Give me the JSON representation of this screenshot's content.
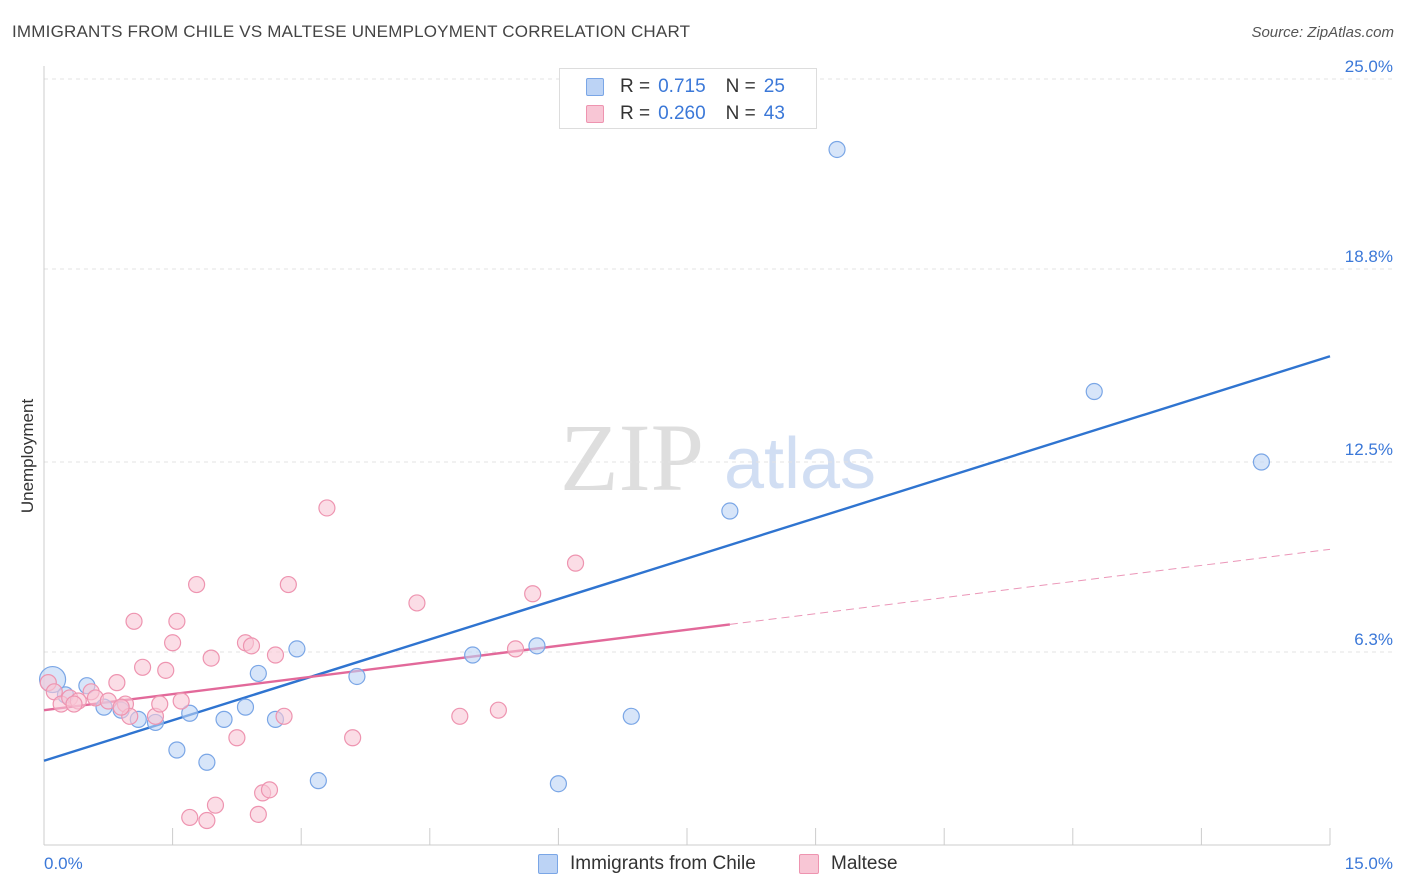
{
  "header": {
    "title": "IMMIGRANTS FROM CHILE VS MALTESE UNEMPLOYMENT CORRELATION CHART",
    "source": "Source: ZipAtlas.com"
  },
  "watermark": {
    "zip": "ZIP",
    "atlas": "atlas"
  },
  "colors": {
    "blue_fill": "#bcd3f5",
    "blue_stroke": "#7aa6e6",
    "blue_line": "#2f74d0",
    "pink_fill": "#f8c6d5",
    "pink_stroke": "#ee94b0",
    "pink_line": "#e2699a",
    "tick_label": "#3b78d8",
    "grid": "#e3e3e3"
  },
  "stats_legend": {
    "rows": [
      {
        "r_label": "R =",
        "r_value": "0.715",
        "n_label": "N =",
        "n_value": "25",
        "swatch": "blue"
      },
      {
        "r_label": "R =",
        "r_value": "0.260",
        "n_label": "N =",
        "n_value": "43",
        "swatch": "pink"
      }
    ]
  },
  "chart_data": {
    "type": "scatter",
    "title": "IMMIGRANTS FROM CHILE VS MALTESE UNEMPLOYMENT CORRELATION CHART",
    "xlabel": "",
    "ylabel": "Unemployment",
    "xlim": [
      0,
      15
    ],
    "ylim": [
      0,
      25
    ],
    "x_tick_labels": [
      "0.0%",
      "15.0%"
    ],
    "y_ticks": [
      6.3,
      12.5,
      18.8,
      25.0
    ],
    "y_tick_labels": [
      "6.3%",
      "12.5%",
      "18.8%",
      "25.0%"
    ],
    "grid": "horizontal dashed",
    "legend_position": "bottom-center",
    "series": [
      {
        "name": "Immigrants from Chile",
        "color": "blue",
        "trend": {
          "x": [
            0,
            15
          ],
          "y": [
            2.75,
            15.95
          ]
        },
        "points": [
          [
            0.1,
            5.4
          ],
          [
            0.25,
            4.9
          ],
          [
            0.5,
            5.2
          ],
          [
            0.7,
            4.5
          ],
          [
            0.9,
            4.4
          ],
          [
            1.1,
            4.1
          ],
          [
            1.3,
            4.0
          ],
          [
            1.55,
            3.1
          ],
          [
            1.7,
            4.3
          ],
          [
            1.9,
            2.7
          ],
          [
            2.1,
            4.1
          ],
          [
            2.35,
            4.5
          ],
          [
            2.5,
            5.6
          ],
          [
            2.7,
            4.1
          ],
          [
            2.95,
            6.4
          ],
          [
            3.2,
            2.1
          ],
          [
            3.65,
            5.5
          ],
          [
            5.0,
            6.2
          ],
          [
            5.75,
            6.5
          ],
          [
            6.0,
            2.0
          ],
          [
            6.85,
            4.2
          ],
          [
            8.0,
            10.9
          ],
          [
            9.25,
            22.7
          ],
          [
            12.25,
            14.8
          ],
          [
            14.2,
            12.5
          ]
        ]
      },
      {
        "name": "Maltese",
        "color": "pink",
        "trend": {
          "x": [
            0,
            8.0
          ],
          "y": [
            4.4,
            7.2
          ]
        },
        "trend_extension": {
          "x": [
            8.0,
            15
          ],
          "y": [
            7.2,
            9.65
          ]
        },
        "points": [
          [
            0.05,
            5.3
          ],
          [
            0.12,
            5.0
          ],
          [
            0.2,
            4.6
          ],
          [
            0.3,
            4.8
          ],
          [
            0.4,
            4.7
          ],
          [
            0.55,
            5.0
          ],
          [
            0.6,
            4.8
          ],
          [
            0.75,
            4.7
          ],
          [
            0.85,
            5.3
          ],
          [
            0.95,
            4.6
          ],
          [
            1.0,
            4.2
          ],
          [
            1.05,
            7.3
          ],
          [
            1.15,
            5.8
          ],
          [
            1.3,
            4.2
          ],
          [
            1.35,
            4.6
          ],
          [
            1.42,
            5.7
          ],
          [
            1.5,
            6.6
          ],
          [
            1.55,
            7.3
          ],
          [
            1.6,
            4.7
          ],
          [
            1.7,
            0.9
          ],
          [
            1.78,
            8.5
          ],
          [
            1.9,
            0.8
          ],
          [
            1.95,
            6.1
          ],
          [
            2.0,
            1.3
          ],
          [
            2.25,
            3.5
          ],
          [
            2.35,
            6.6
          ],
          [
            2.42,
            6.5
          ],
          [
            2.5,
            1.0
          ],
          [
            2.55,
            1.7
          ],
          [
            2.63,
            1.8
          ],
          [
            2.7,
            6.2
          ],
          [
            2.8,
            4.2
          ],
          [
            2.85,
            8.5
          ],
          [
            3.3,
            11.0
          ],
          [
            3.6,
            3.5
          ],
          [
            4.35,
            7.9
          ],
          [
            4.85,
            4.2
          ],
          [
            5.3,
            4.4
          ],
          [
            5.5,
            6.4
          ],
          [
            5.7,
            8.2
          ],
          [
            6.2,
            9.2
          ],
          [
            0.35,
            4.6
          ],
          [
            0.9,
            4.5
          ]
        ]
      }
    ]
  },
  "bottom_legend": {
    "items": [
      {
        "label": "Immigrants from Chile",
        "swatch": "blue"
      },
      {
        "label": "Maltese",
        "swatch": "pink"
      }
    ]
  }
}
